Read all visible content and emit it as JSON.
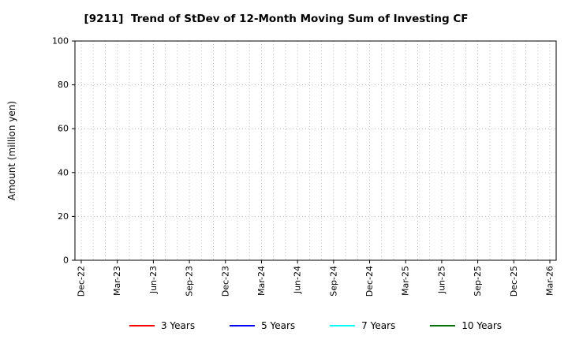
{
  "chart_data": {
    "type": "line",
    "title": "[9211]  Trend of StDev of 12-Month Moving Sum of Investing CF",
    "ylabel": "Amount (million yen)",
    "ylim": [
      0,
      100
    ],
    "yticks": [
      0,
      20,
      40,
      60,
      80,
      100
    ],
    "x_ticklabels": [
      "Dec-22",
      "Mar-23",
      "Jun-23",
      "Sep-23",
      "Dec-23",
      "Mar-24",
      "Jun-24",
      "Sep-24",
      "Dec-24",
      "Mar-25",
      "Jun-25",
      "Sep-25",
      "Dec-25",
      "Mar-26"
    ],
    "months_per_tick": 3,
    "grid": true,
    "grid_style": "dotted",
    "legend_position": "bottom",
    "series": [
      {
        "name": "3 Years",
        "color": "#ff0000",
        "values": []
      },
      {
        "name": "5 Years",
        "color": "#0000ff",
        "values": []
      },
      {
        "name": "7 Years",
        "color": "#00ffff",
        "values": []
      },
      {
        "name": "10 Years",
        "color": "#007000",
        "values": []
      }
    ]
  }
}
